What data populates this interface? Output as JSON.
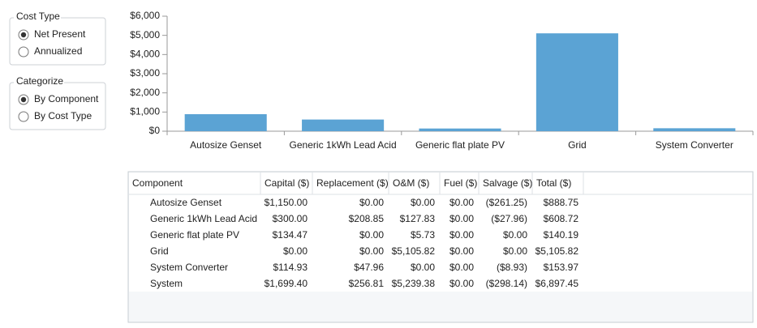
{
  "cost_type": {
    "title": "Cost Type",
    "options": [
      "Net Present",
      "Annualized"
    ],
    "selected": 0
  },
  "categorize": {
    "title": "Categorize",
    "options": [
      "By Component",
      "By Cost Type"
    ],
    "selected": 0
  },
  "chart_data": {
    "type": "bar",
    "categories": [
      "Autosize Genset",
      "Generic 1kWh Lead Acid",
      "Generic flat plate PV",
      "Grid",
      "System Converter"
    ],
    "values": [
      888.75,
      608.72,
      140.19,
      5105.82,
      153.97
    ],
    "color": "#5ba3d4",
    "ylim": [
      0,
      6000
    ],
    "yticks": [
      {
        "value": 0,
        "label": "$0"
      },
      {
        "value": 1000,
        "label": "$1,000"
      },
      {
        "value": 2000,
        "label": "$2,000"
      },
      {
        "value": 3000,
        "label": "$3,000"
      },
      {
        "value": 4000,
        "label": "$4,000"
      },
      {
        "value": 5000,
        "label": "$5,000"
      },
      {
        "value": 6000,
        "label": "$6,000"
      }
    ]
  },
  "table": {
    "columns": [
      "Component",
      "Capital ($)",
      "Replacement ($)",
      "O&M ($)",
      "Fuel ($)",
      "Salvage ($)",
      "Total ($)"
    ],
    "rows": [
      [
        "Autosize Genset",
        "$1,150.00",
        "$0.00",
        "$0.00",
        "$0.00",
        "($261.25)",
        "$888.75"
      ],
      [
        "Generic 1kWh Lead Acid",
        "$300.00",
        "$208.85",
        "$127.83",
        "$0.00",
        "($27.96)",
        "$608.72"
      ],
      [
        "Generic flat plate PV",
        "$134.47",
        "$0.00",
        "$5.73",
        "$0.00",
        "$0.00",
        "$140.19"
      ],
      [
        "Grid",
        "$0.00",
        "$0.00",
        "$5,105.82",
        "$0.00",
        "$0.00",
        "$5,105.82"
      ],
      [
        "System Converter",
        "$114.93",
        "$47.96",
        "$0.00",
        "$0.00",
        "($8.93)",
        "$153.97"
      ],
      [
        "System",
        "$1,699.40",
        "$256.81",
        "$5,239.38",
        "$0.00",
        "($298.14)",
        "$6,897.45"
      ]
    ]
  }
}
